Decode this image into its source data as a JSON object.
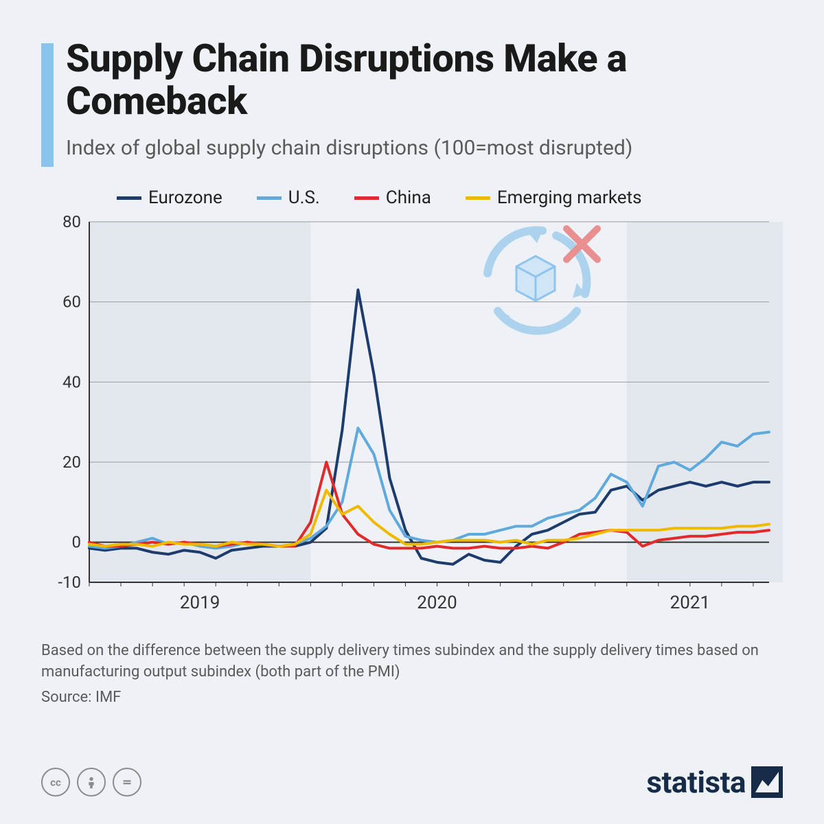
{
  "header": {
    "title": "Supply Chain Disruptions Make a Comeback",
    "subtitle": "Index of global supply chain disruptions (100=most disrupted)",
    "accent_color": "#8ac3ec"
  },
  "chart": {
    "type": "line",
    "ylim": [
      -10,
      80
    ],
    "ytick_step": 20,
    "yticks": [
      -10,
      0,
      20,
      40,
      60,
      80
    ],
    "x_count": 44,
    "x_year_labels": [
      {
        "label": "2019",
        "at": 7
      },
      {
        "label": "2020",
        "at": 22
      },
      {
        "label": "2021",
        "at": 38
      }
    ],
    "shaded_bands": [
      {
        "from": 0,
        "to": 14
      },
      {
        "from": 34,
        "to": 44
      }
    ],
    "background_color": "#eef2f6",
    "band_color": "#e3e8ee",
    "grid_color": "#9b9b9b",
    "axis_color": "#333333",
    "line_width": 4,
    "series": [
      {
        "name": "Eurozone",
        "color": "#1d3b6c",
        "values": [
          -1.5,
          -2,
          -1.5,
          -1.5,
          -2.5,
          -3,
          -2,
          -2.5,
          -4,
          -2,
          -1.5,
          -1,
          -1,
          -1,
          0,
          3.5,
          28,
          63,
          42,
          16,
          3,
          -4,
          -5,
          -5.5,
          -3,
          -4.5,
          -5,
          -1,
          2,
          3,
          5,
          7,
          7.5,
          13,
          14,
          10.5,
          13,
          14,
          15,
          14,
          15,
          14,
          15,
          15
        ]
      },
      {
        "name": "U.S.",
        "color": "#5fa9dd",
        "values": [
          -1,
          -1.5,
          -1,
          0,
          1,
          -0.5,
          0,
          -1,
          -1.5,
          -1,
          0,
          -0.5,
          -1,
          -0.5,
          1,
          4,
          10,
          28.5,
          22,
          8,
          1.5,
          0.5,
          0,
          0.5,
          2,
          2,
          3,
          4,
          4,
          6,
          7,
          8,
          11,
          17,
          15,
          9,
          19,
          20,
          18,
          21,
          25,
          24,
          27,
          27.5
        ]
      },
      {
        "name": "China",
        "color": "#e12b2b",
        "values": [
          0,
          -1,
          -1,
          -0.5,
          0,
          -0.5,
          0,
          -0.5,
          -1,
          -0.5,
          0,
          -0.5,
          -1,
          -1,
          5,
          20,
          7,
          2,
          -0.5,
          -1.5,
          -1.5,
          -1.5,
          -1,
          -1.5,
          -1.5,
          -1,
          -1.5,
          -1.5,
          -1,
          -1.5,
          0,
          2,
          2.5,
          3,
          2.5,
          -1,
          0.5,
          1,
          1.5,
          1.5,
          2,
          2.5,
          2.5,
          3
        ]
      },
      {
        "name": "Emerging markets",
        "color": "#efb900",
        "values": [
          -0.5,
          -1,
          -0.5,
          -0.5,
          -1,
          0,
          -0.5,
          -0.5,
          -1,
          0,
          -0.5,
          -0.5,
          -1,
          -0.5,
          2,
          13,
          7,
          9,
          5,
          2,
          -0.5,
          -0.5,
          0,
          0.5,
          0.5,
          0.5,
          0,
          0.5,
          -0.5,
          0.5,
          0.5,
          1,
          2,
          3,
          3,
          3,
          3,
          3.5,
          3.5,
          3.5,
          3.5,
          4,
          4,
          4.5
        ]
      }
    ],
    "decorative_icon": {
      "name": "supply-cycle-broken-icon",
      "arrow_color": "#aad1ee",
      "cube_color": "#cfe5f6",
      "cube_stroke": "#8ac3ec",
      "x_color": "#e88a8a"
    }
  },
  "footnote": "Based on the difference between the supply delivery times subindex and the supply delivery times based on manufacturing output subindex (both part of the PMI)",
  "source_label": "Source: IMF",
  "brand": "statista",
  "license_icons": [
    "cc",
    "by",
    "nd"
  ]
}
